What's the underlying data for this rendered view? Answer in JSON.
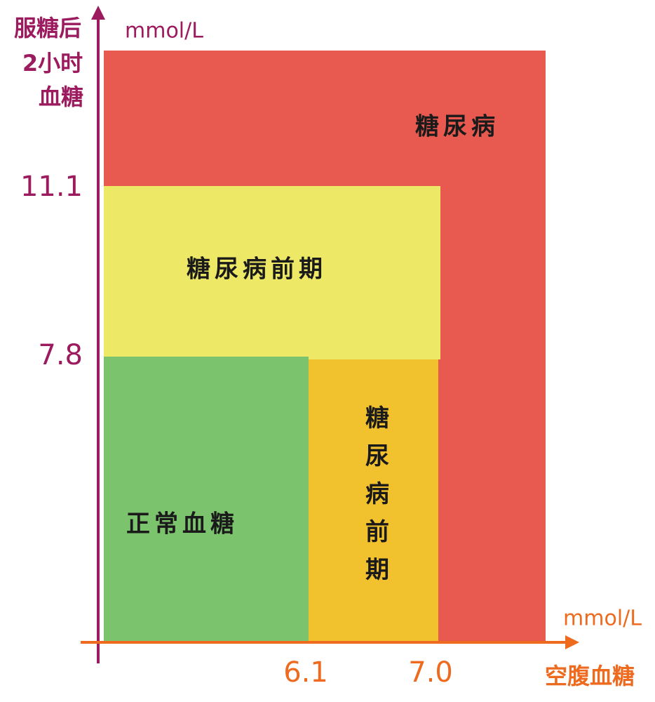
{
  "y_axis": {
    "label_lines": [
      "服糖后",
      "2小时",
      "血糖"
    ],
    "unit": "mmol/L",
    "ticks": [
      "11.1",
      "7.8"
    ]
  },
  "x_axis": {
    "label": "空腹血糖",
    "unit": "mmol/L",
    "ticks": [
      "6.1",
      "7.0"
    ]
  },
  "regions": {
    "diabetes": "糖尿病",
    "prediabetes_postprandial": "糖尿病前期",
    "prediabetes_fasting": "糖尿病前期",
    "normal": "正常血糖"
  }
}
